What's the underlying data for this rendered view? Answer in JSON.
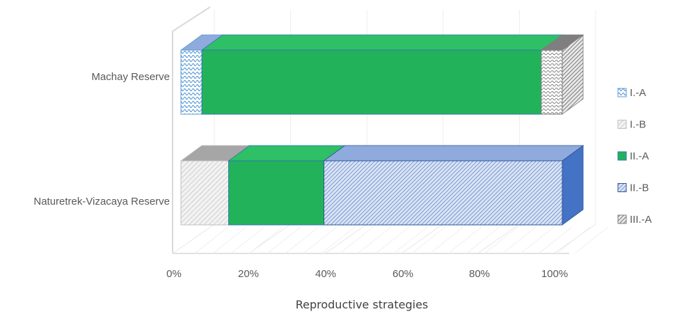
{
  "chart_data": {
    "type": "bar",
    "orientation": "horizontal",
    "stacked": "100%",
    "style": "3d",
    "title": "",
    "xlabel": "Reproductive strategies",
    "ylabel": "",
    "xlim": [
      0,
      100
    ],
    "x_ticks": [
      "0%",
      "20%",
      "40%",
      "60%",
      "80%",
      "100%"
    ],
    "categories": [
      "Machay Reserve",
      "Naturetrek-Vizacaya Reserve"
    ],
    "series": [
      {
        "name": "I.-A",
        "values": [
          5.5,
          0
        ],
        "color": "#9dc3e6",
        "pattern": "stripe-blue"
      },
      {
        "name": "I.-B",
        "values": [
          0,
          12.5
        ],
        "color": "#d0d0d0",
        "pattern": "hatch-gray"
      },
      {
        "name": "II.-A",
        "values": [
          89,
          25
        ],
        "color": "#22b35a",
        "pattern": "solid"
      },
      {
        "name": "II.-B",
        "values": [
          0,
          62.5
        ],
        "color": "#4472c4",
        "pattern": "hatch-blue"
      },
      {
        "name": "III.-A",
        "values": [
          5.5,
          0
        ],
        "color": "#808080",
        "pattern": "hatch-dark"
      }
    ],
    "grid": true,
    "legend": "right"
  }
}
